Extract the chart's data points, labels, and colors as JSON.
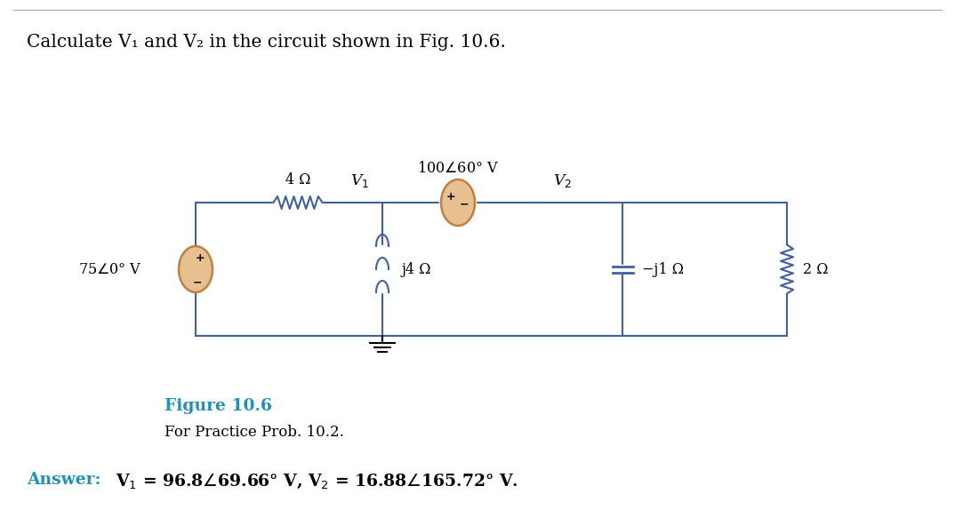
{
  "title": "Calculate V₁ and V₂ in the circuit shown in Fig. 10.6.",
  "figure_label": "Figure 10.6",
  "figure_sublabel": "For Practice Prob. 10.2.",
  "answer_text": "Answer: V₁ = 96.8 / 69.66° V, V₂ = 16.88 / 165.72° V.",
  "bg_color": "#ffffff",
  "circuit_color": "#000000",
  "source_fill_left": "#e8c090",
  "source_fill_right": "#e8c090",
  "source_border": "#c08040",
  "figure_label_color": "#2090c0",
  "answer_bold_color": "#2090c0",
  "answer_color": "#000000",
  "wire_color": "#4060a0",
  "ground_color": "#000000"
}
